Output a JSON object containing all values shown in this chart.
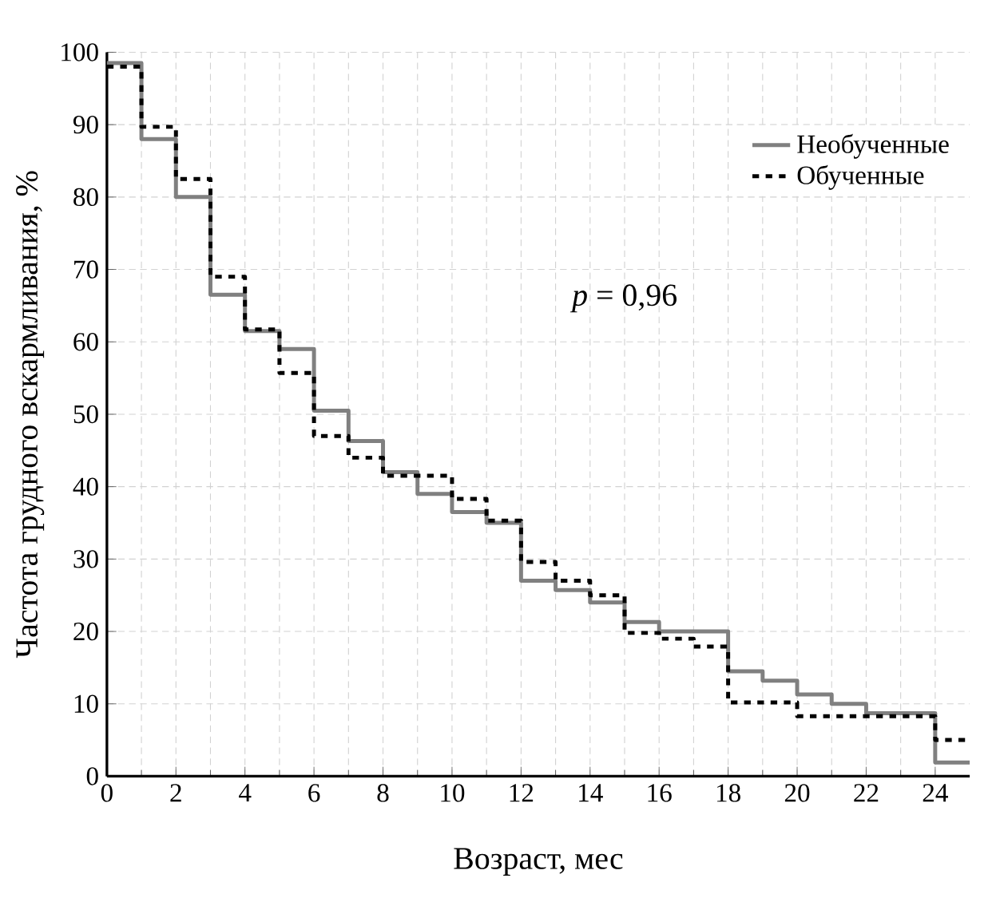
{
  "chart_data": {
    "type": "step",
    "xlabel": "Возраст, мес",
    "ylabel": "Частота грудного вскармливания, %",
    "annotations": [
      "*p* = 0,96"
    ],
    "xlim": [
      0,
      25
    ],
    "xticks": [
      0,
      2,
      4,
      6,
      8,
      10,
      12,
      14,
      16,
      18,
      20,
      22,
      24
    ],
    "ylim": [
      0,
      100
    ],
    "yticks": [
      0,
      10,
      20,
      30,
      40,
      50,
      60,
      70,
      80,
      90,
      100
    ],
    "grid": true,
    "legend": "top right",
    "marker": "none",
    "series": [
      {
        "name": "Необученные",
        "color": "#808080",
        "line_style": "solid",
        "x": [
          0,
          1,
          2,
          3,
          4,
          5,
          6,
          7,
          8,
          9,
          10,
          11,
          12,
          13,
          14,
          15,
          16,
          18,
          19,
          20,
          21,
          22,
          24,
          25
        ],
        "values": [
          98.5,
          88,
          80,
          66.5,
          61.5,
          59,
          50.5,
          46.3,
          42,
          39,
          36.5,
          35,
          27,
          25.7,
          24,
          21.3,
          20,
          14.5,
          13.2,
          11.3,
          10,
          8.7,
          1.9,
          1.9
        ]
      },
      {
        "name": "Обученные",
        "color": "#000000",
        "line_style": "dashed",
        "x": [
          0,
          1,
          2,
          3,
          4,
          5,
          6,
          7,
          8,
          10,
          11,
          12,
          13,
          14,
          15,
          16,
          17,
          18,
          20,
          24,
          25
        ],
        "values": [
          98,
          89.7,
          82.5,
          69,
          61.7,
          55.7,
          47,
          44,
          41.5,
          38.3,
          35.3,
          29.6,
          27,
          25,
          19.8,
          19,
          17.9,
          10.2,
          8.3,
          5,
          5
        ]
      }
    ]
  }
}
